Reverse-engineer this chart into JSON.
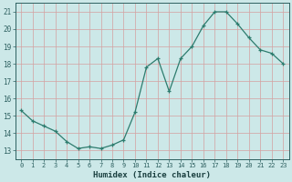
{
  "x": [
    0,
    1,
    2,
    3,
    4,
    5,
    6,
    7,
    8,
    9,
    10,
    11,
    12,
    13,
    14,
    15,
    16,
    17,
    18,
    19,
    20,
    21,
    22,
    23
  ],
  "y": [
    15.3,
    14.7,
    14.4,
    14.1,
    13.5,
    13.1,
    13.2,
    13.1,
    13.3,
    13.6,
    15.2,
    17.8,
    18.3,
    16.4,
    18.3,
    19.0,
    20.2,
    21.0,
    21.0,
    20.3,
    19.5,
    18.8,
    18.6,
    18.0
  ],
  "xlabel": "Humidex (Indice chaleur)",
  "xlim": [
    -0.5,
    23.5
  ],
  "ylim": [
    12.5,
    21.5
  ],
  "yticks": [
    13,
    14,
    15,
    16,
    17,
    18,
    19,
    20,
    21
  ],
  "xticks": [
    0,
    1,
    2,
    3,
    4,
    5,
    6,
    7,
    8,
    9,
    10,
    11,
    12,
    13,
    14,
    15,
    16,
    17,
    18,
    19,
    20,
    21,
    22,
    23
  ],
  "line_color": "#2d7c6e",
  "bg_color": "#cce8e8",
  "grid_color": "#b8d8d4",
  "tick_label_color": "#2e6060",
  "xlabel_color": "#1a4040"
}
